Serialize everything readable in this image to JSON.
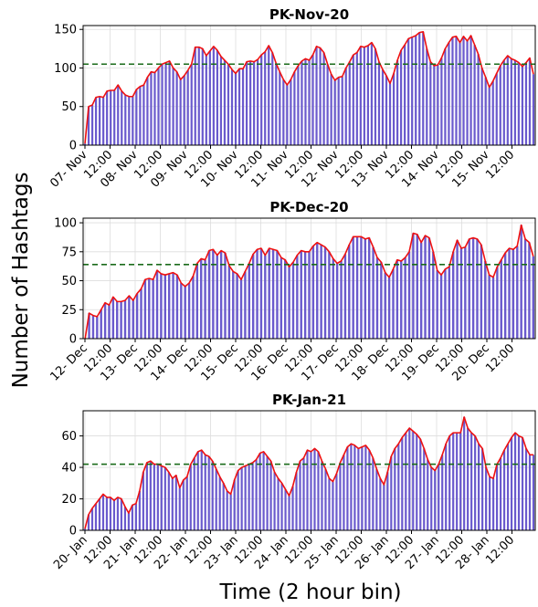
{
  "figure": {
    "ylabel": "Number of Hashtags",
    "xlabel": "Time (2 hour bin)"
  },
  "colors": {
    "bar": "#6a5acd",
    "line": "#ee1111",
    "mean": "#1a6b1a",
    "grid": "#dddddd"
  },
  "chart_data": [
    {
      "type": "bar",
      "title": "PK-Nov-20",
      "ylim": [
        0,
        155
      ],
      "yticks": [
        0,
        50,
        100,
        150
      ],
      "mean": 105,
      "xtick_labels": [
        "07- Nov",
        "12:00",
        "08- Nov",
        "12:00",
        "09- Nov",
        "12:00",
        "10- Nov",
        "12:00",
        "11- Nov",
        "12:00",
        "12- Nov",
        "12:00",
        "13- Nov",
        "12:00",
        "14- Nov",
        "12:00",
        "15- Nov",
        "12:00"
      ],
      "values": [
        2,
        50,
        52,
        62,
        63,
        62,
        70,
        71,
        71,
        78,
        70,
        65,
        63,
        63,
        72,
        76,
        78,
        88,
        95,
        94,
        100,
        105,
        107,
        109,
        100,
        95,
        85,
        90,
        97,
        105,
        127,
        127,
        125,
        116,
        122,
        128,
        123,
        115,
        110,
        105,
        98,
        93,
        99,
        99,
        108,
        109,
        108,
        111,
        117,
        121,
        129,
        120,
        106,
        95,
        85,
        78,
        85,
        95,
        103,
        109,
        112,
        110,
        117,
        128,
        126,
        120,
        105,
        92,
        84,
        88,
        89,
        100,
        108,
        117,
        120,
        128,
        127,
        129,
        133,
        125,
        108,
        98,
        90,
        80,
        93,
        110,
        123,
        130,
        138,
        140,
        142,
        146,
        147,
        125,
        108,
        103,
        104,
        113,
        125,
        133,
        140,
        141,
        133,
        141,
        135,
        142,
        130,
        118,
        100,
        88,
        75,
        83,
        93,
        103,
        110,
        116,
        112,
        110,
        107,
        102,
        107,
        113,
        92
      ]
    },
    {
      "type": "bar",
      "title": "PK-Dec-20",
      "ylim": [
        0,
        104
      ],
      "yticks": [
        0,
        25,
        50,
        75,
        100
      ],
      "mean": 64,
      "xtick_labels": [
        "12- Dec",
        "12:00",
        "13- Dec",
        "12:00",
        "14- Dec",
        "12:00",
        "15- Dec",
        "12:00",
        "16- Dec",
        "12:00",
        "17- Dec",
        "12:00",
        "18- Dec",
        "12:00",
        "19- Dec",
        "12:00",
        "20- Dec",
        "12:00"
      ],
      "values": [
        0,
        22,
        20,
        19,
        25,
        31,
        29,
        36,
        32,
        32,
        33,
        37,
        33,
        39,
        43,
        51,
        52,
        51,
        59,
        56,
        55,
        56,
        57,
        55,
        48,
        45,
        48,
        54,
        65,
        69,
        68,
        76,
        77,
        72,
        76,
        74,
        63,
        58,
        56,
        51,
        58,
        65,
        73,
        77,
        78,
        72,
        78,
        77,
        76,
        70,
        68,
        62,
        66,
        72,
        76,
        75,
        75,
        80,
        83,
        81,
        79,
        75,
        69,
        65,
        67,
        73,
        81,
        88,
        88,
        88,
        86,
        87,
        79,
        70,
        66,
        57,
        53,
        60,
        68,
        67,
        70,
        75,
        91,
        90,
        83,
        89,
        87,
        75,
        59,
        55,
        60,
        62,
        75,
        85,
        78,
        79,
        86,
        87,
        86,
        81,
        67,
        55,
        53,
        62,
        68,
        74,
        78,
        77,
        80,
        98,
        86,
        83,
        71
      ]
    },
    {
      "type": "bar",
      "title": "PK-Jan-21",
      "ylim": [
        0,
        76
      ],
      "yticks": [
        0,
        20,
        40,
        60
      ],
      "mean": 42,
      "xtick_labels": [
        "20- Jan",
        "12:00",
        "21- Jan",
        "12:00",
        "22- Jan",
        "12:00",
        "23- Jan",
        "12:00",
        "24- Jan",
        "12:00",
        "25- Jan",
        "12:00",
        "26- Jan",
        "12:00",
        "27- Jan",
        "12:00",
        "28- Jan",
        "12:00"
      ],
      "values": [
        1,
        10,
        14,
        17,
        20,
        23,
        21,
        21,
        19,
        21,
        20,
        15,
        11,
        16,
        17,
        25,
        37,
        43,
        44,
        42,
        42,
        41,
        40,
        37,
        33,
        35,
        27,
        32,
        34,
        42,
        46,
        50,
        51,
        48,
        47,
        44,
        39,
        34,
        30,
        25,
        23,
        32,
        38,
        40,
        41,
        42,
        43,
        45,
        49,
        50,
        47,
        44,
        37,
        33,
        30,
        26,
        22,
        28,
        37,
        44,
        46,
        51,
        50,
        52,
        50,
        44,
        39,
        33,
        31,
        36,
        43,
        48,
        53,
        55,
        54,
        52,
        53,
        54,
        51,
        46,
        39,
        33,
        29,
        37,
        47,
        52,
        55,
        59,
        62,
        65,
        63,
        61,
        58,
        52,
        45,
        40,
        38,
        42,
        48,
        55,
        60,
        62,
        62,
        62,
        72,
        65,
        62,
        60,
        55,
        52,
        40,
        34,
        33,
        42,
        46,
        51,
        55,
        59,
        62,
        60,
        59,
        52,
        48,
        48
      ]
    }
  ]
}
